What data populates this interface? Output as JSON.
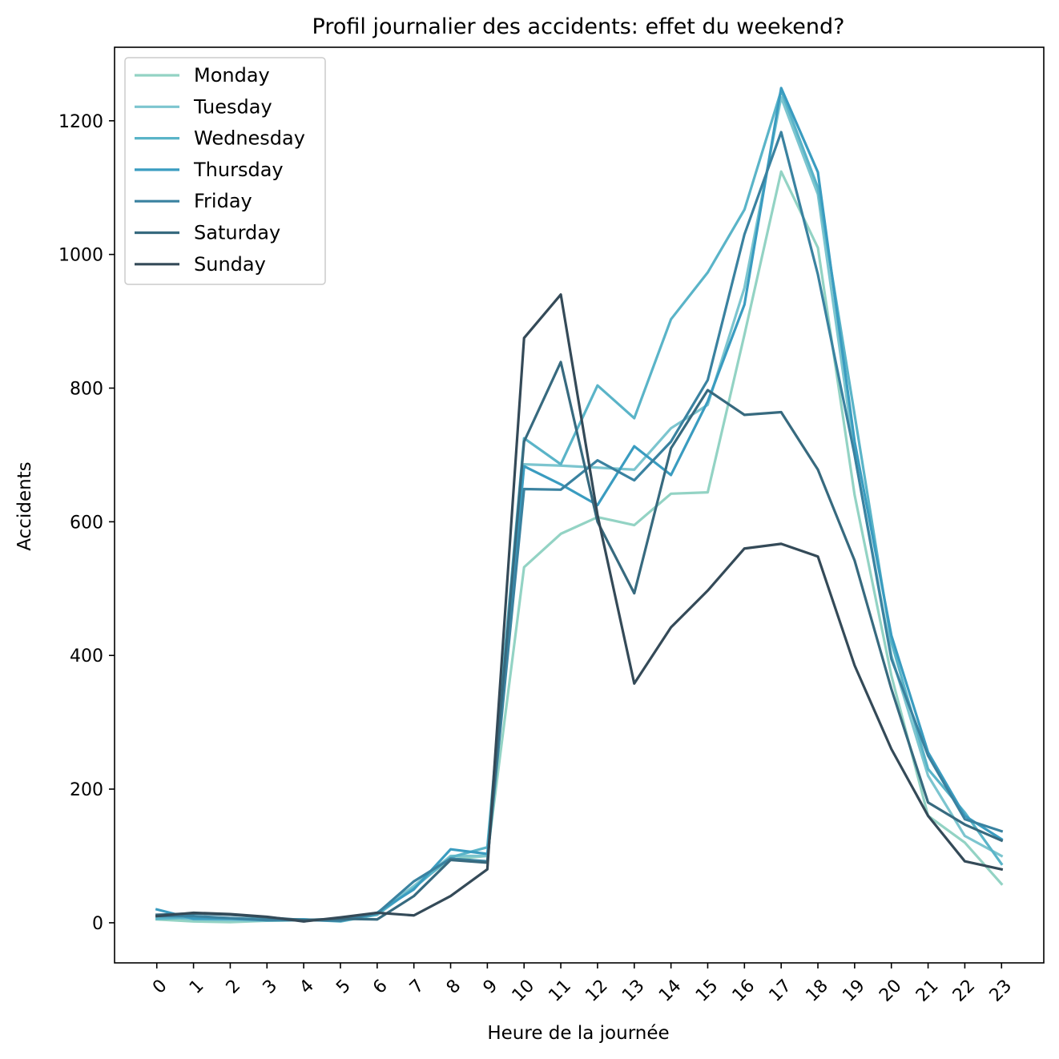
{
  "chart_data": {
    "type": "line",
    "title": "Profil journalier des accidents: effet du weekend?",
    "xlabel": "Heure de la journée",
    "ylabel": "Accidents",
    "x": [
      0,
      1,
      2,
      3,
      4,
      5,
      6,
      7,
      8,
      9,
      10,
      11,
      12,
      13,
      14,
      15,
      16,
      17,
      18,
      19,
      20,
      21,
      22,
      23
    ],
    "xlim": [
      -1.15,
      24.15
    ],
    "ylim": [
      -60,
      1310
    ],
    "yticks": [
      0,
      200,
      400,
      600,
      800,
      1000,
      1200
    ],
    "grid": false,
    "legend_position": "upper-left",
    "series": [
      {
        "name": "Monday",
        "color": "#93d3c4",
        "values": [
          5,
          2,
          1,
          3,
          4,
          5,
          12,
          55,
          95,
          100,
          532,
          582,
          607,
          595,
          642,
          644,
          880,
          1124,
          1010,
          640,
          370,
          160,
          120,
          58
        ]
      },
      {
        "name": "Tuesday",
        "color": "#7cc5cf",
        "values": [
          10,
          5,
          4,
          3,
          4,
          6,
          15,
          55,
          100,
          100,
          686,
          684,
          681,
          678,
          740,
          775,
          950,
          1235,
          1090,
          700,
          400,
          220,
          130,
          100
        ]
      },
      {
        "name": "Wednesday",
        "color": "#5ab4c8",
        "values": [
          6,
          8,
          7,
          5,
          5,
          2,
          12,
          52,
          98,
          113,
          725,
          686,
          804,
          755,
          903,
          973,
          1067,
          1245,
          1100,
          760,
          420,
          230,
          165,
          88
        ]
      },
      {
        "name": "Thursday",
        "color": "#3a9cc0",
        "values": [
          20,
          6,
          6,
          4,
          5,
          3,
          15,
          50,
          110,
          103,
          683,
          656,
          625,
          713,
          670,
          780,
          925,
          1249,
          1123,
          720,
          430,
          255,
          160,
          125
        ]
      },
      {
        "name": "Friday",
        "color": "#3a82a0",
        "values": [
          10,
          10,
          7,
          4,
          4,
          3,
          14,
          62,
          96,
          92,
          649,
          648,
          692,
          662,
          720,
          812,
          1030,
          1183,
          970,
          700,
          395,
          250,
          155,
          137
        ]
      },
      {
        "name": "Saturday",
        "color": "#376a7f",
        "values": [
          12,
          14,
          12,
          8,
          4,
          6,
          5,
          40,
          94,
          90,
          720,
          839,
          600,
          493,
          710,
          797,
          760,
          764,
          678,
          542,
          350,
          180,
          147,
          123
        ]
      },
      {
        "name": "Sunday",
        "color": "#344a58",
        "values": [
          10,
          15,
          13,
          9,
          2,
          8,
          15,
          11,
          40,
          80,
          875,
          940,
          610,
          358,
          442,
          497,
          560,
          567,
          548,
          385,
          260,
          160,
          92,
          80
        ]
      }
    ]
  }
}
